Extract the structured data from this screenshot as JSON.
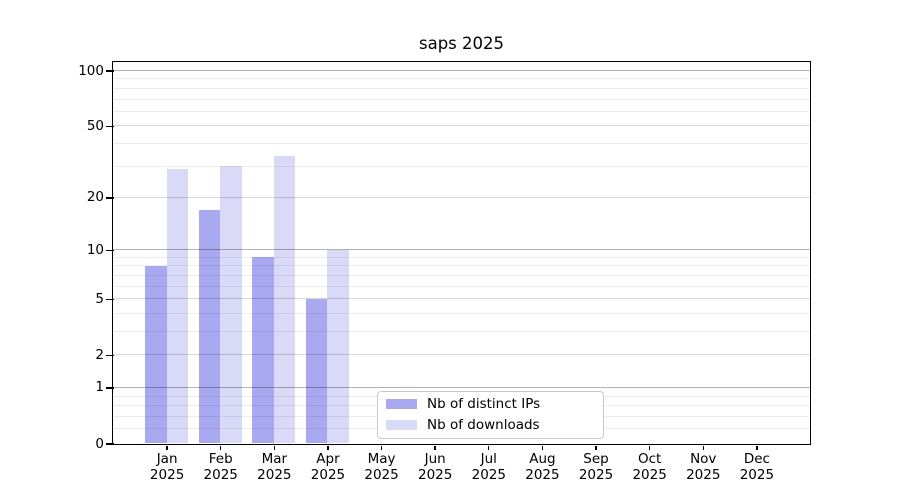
{
  "chart_data": {
    "type": "bar",
    "title": "saps 2025",
    "months": [
      "Jan",
      "Feb",
      "Mar",
      "Apr",
      "May",
      "Jun",
      "Jul",
      "Aug",
      "Sep",
      "Oct",
      "Nov",
      "Dec"
    ],
    "year": "2025",
    "series": [
      {
        "name": "Nb of distinct IPs",
        "color": "#a8a9f1",
        "values": [
          8,
          17,
          9,
          5,
          0,
          0,
          0,
          0,
          0,
          0,
          0,
          0
        ]
      },
      {
        "name": "Nb of downloads",
        "color": "#d9d9f8",
        "values": [
          29,
          30,
          34,
          10,
          0,
          0,
          0,
          0,
          0,
          0,
          0,
          0
        ]
      }
    ],
    "y_axis": {
      "scale": "log1p",
      "tick_values": [
        0,
        1,
        2,
        5,
        10,
        20,
        50,
        100
      ],
      "decade_gridlines": [
        1,
        10,
        100
      ],
      "minor_gridlines": [
        0.2,
        0.4,
        0.6,
        0.8,
        3,
        4,
        6,
        7,
        8,
        9,
        30,
        40,
        60,
        70,
        80,
        90
      ],
      "ylim": [
        0,
        112
      ],
      "grid": true
    },
    "x_axis": {
      "xlim_slots": 13,
      "bar_width_units": 0.4
    },
    "legend": {
      "location": "lower-center",
      "entries": [
        "Nb of distinct IPs",
        "Nb of downloads"
      ]
    }
  }
}
